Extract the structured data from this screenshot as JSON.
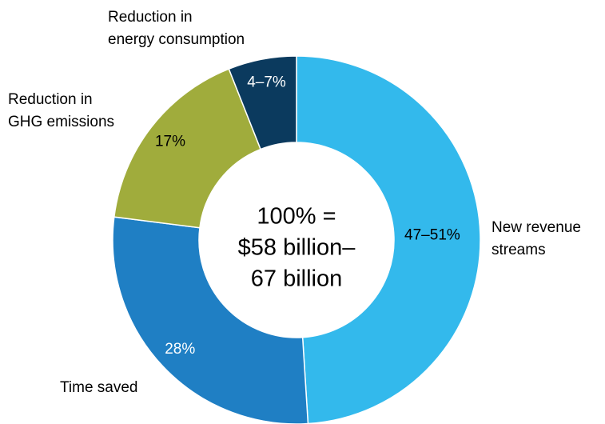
{
  "chart_data": {
    "type": "donut",
    "center_label": [
      "100% =",
      "$58 billion–",
      "67 billion"
    ],
    "categories": [
      [
        "New revenue",
        "streams"
      ],
      [
        "Time saved"
      ],
      [
        "Reduction in",
        "GHG emissions"
      ],
      [
        "Reduction in",
        "energy consumption"
      ]
    ],
    "values": [
      49,
      28,
      17,
      6
    ],
    "value_labels": [
      "47–51%",
      "28%",
      "17%",
      "4–7%"
    ],
    "colors": [
      "#33b9ec",
      "#1f7fc4",
      "#a0ac3c",
      "#0b3a5e"
    ]
  }
}
